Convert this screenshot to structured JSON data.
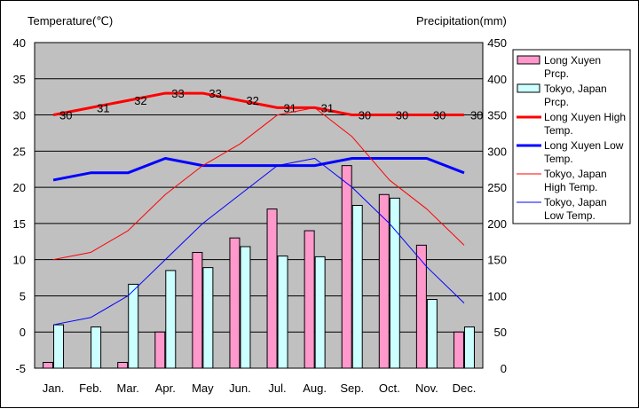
{
  "chart_data": {
    "type": "bar",
    "categories": [
      "Jan.",
      "Feb.",
      "Mar.",
      "Apr.",
      "May",
      "Jun.",
      "Jul.",
      "Aug.",
      "Sep.",
      "Oct.",
      "Nov.",
      "Dec."
    ],
    "y_left": {
      "label": "Temperature(℃)",
      "range": [
        -5,
        40
      ],
      "ticks": [
        -5,
        0,
        5,
        10,
        15,
        20,
        25,
        30,
        35,
        40
      ]
    },
    "y_right": {
      "label": "Precipitation(mm)",
      "range": [
        0,
        450
      ],
      "ticks": [
        0,
        50,
        100,
        150,
        200,
        250,
        300,
        350,
        400,
        450
      ]
    },
    "grid": true,
    "legend_position": "right",
    "bar_series": [
      {
        "name": "Long Xuyen Prcp.",
        "color": "#ff99cc",
        "axis": "right",
        "values": [
          8,
          0,
          8,
          50,
          160,
          180,
          220,
          190,
          280,
          240,
          170,
          50
        ]
      },
      {
        "name": "Tokyo, Japan Prcp.",
        "color": "#ccffff",
        "axis": "right",
        "values": [
          60,
          57,
          116,
          135,
          139,
          168,
          155,
          154,
          225,
          235,
          95,
          57
        ]
      }
    ],
    "line_series": [
      {
        "name": "Long Xuyen High Temp.",
        "color": "#ff0000",
        "width": 3,
        "axis": "left",
        "values": [
          30,
          31,
          32,
          33,
          33,
          32,
          31,
          31,
          30,
          30,
          30,
          30
        ],
        "data_labels": [
          "30",
          "31",
          "32",
          "33",
          "33",
          "32",
          "31",
          "31",
          "30",
          "30",
          "30",
          "30"
        ]
      },
      {
        "name": "Long Xuyen Low Temp.",
        "color": "#0000ff",
        "width": 3,
        "axis": "left",
        "values": [
          21,
          22,
          22,
          24,
          23,
          23,
          23,
          23,
          24,
          24,
          24,
          22
        ]
      },
      {
        "name": "Tokyo, Japan High Temp.",
        "color": "#ff0000",
        "width": 1,
        "axis": "left",
        "values": [
          10,
          11,
          14,
          19,
          23,
          26,
          30,
          31,
          27,
          21,
          17,
          12
        ]
      },
      {
        "name": "Tokyo, Japan Low Temp.",
        "color": "#0000ff",
        "width": 1,
        "axis": "left",
        "values": [
          1,
          2,
          5,
          10,
          15,
          19,
          23,
          24,
          20,
          15,
          9,
          4
        ]
      }
    ],
    "legend": [
      {
        "kind": "bar",
        "lines": [
          "Long Xuyen",
          "Prcp."
        ],
        "color": "#ff99cc"
      },
      {
        "kind": "bar",
        "lines": [
          "Tokyo, Japan",
          "Prcp."
        ],
        "color": "#ccffff"
      },
      {
        "kind": "line",
        "lines": [
          "Long Xuyen High",
          "Temp."
        ],
        "color": "#ff0000",
        "width": 3
      },
      {
        "kind": "line",
        "lines": [
          "Long Xuyen Low",
          "Temp."
        ],
        "color": "#0000ff",
        "width": 3
      },
      {
        "kind": "line",
        "lines": [
          "Tokyo, Japan",
          "High Temp."
        ],
        "color": "#ff0000",
        "width": 1
      },
      {
        "kind": "line",
        "lines": [
          "Tokyo, Japan",
          "Low Temp."
        ],
        "color": "#0000ff",
        "width": 1
      }
    ],
    "plot_background": "#c0c0c0"
  }
}
